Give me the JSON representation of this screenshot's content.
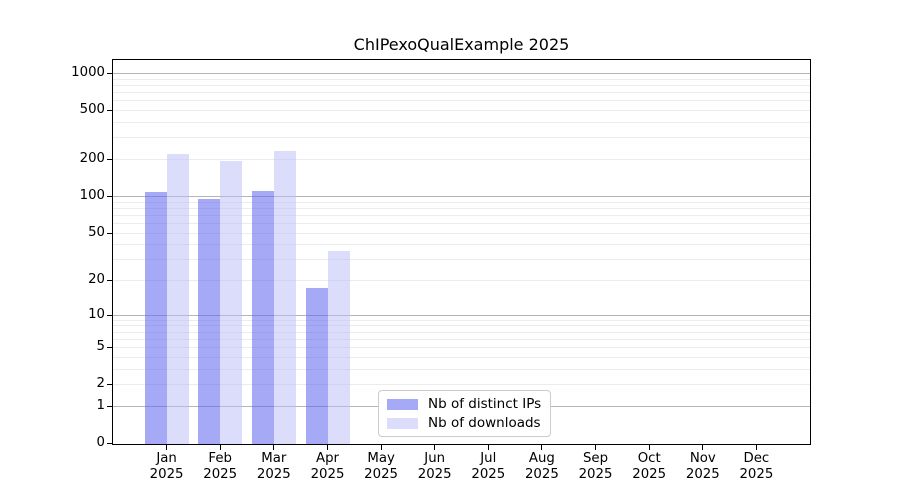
{
  "chart_data": {
    "type": "bar",
    "title": "ChIPexoQualExample 2025",
    "categories": [
      "Jan",
      "Feb",
      "Mar",
      "Apr",
      "May",
      "Jun",
      "Jul",
      "Aug",
      "Sep",
      "Oct",
      "Nov",
      "Dec"
    ],
    "x_tick_year": "2025",
    "series": [
      {
        "key": "distinct-ips",
        "name": "Nb of distinct IPs",
        "values": [
          108,
          95,
          110,
          17,
          0,
          0,
          0,
          0,
          0,
          0,
          0,
          0
        ],
        "fill": "rgba(93,99,237,0.55)",
        "swatch_color": "#a6a9f5"
      },
      {
        "key": "downloads",
        "name": "Nb of downloads",
        "values": [
          220,
          193,
          232,
          35,
          0,
          0,
          0,
          0,
          0,
          0,
          0,
          0
        ],
        "fill": "rgba(183,187,245,0.5)",
        "swatch_color": "#dbddfa"
      }
    ],
    "y_ticks": [
      0,
      1,
      2,
      5,
      10,
      20,
      50,
      100,
      200,
      500,
      1000
    ],
    "y_scale": "log1p",
    "ylim": [
      0,
      1270
    ],
    "grid": "major-and-minor",
    "legend_position": "lower-center",
    "colors": {
      "major_grid": "#b5b5b5",
      "minor_grid": "#ececec",
      "axis": "#000000",
      "text": "#000000",
      "background": "#ffffff"
    }
  }
}
